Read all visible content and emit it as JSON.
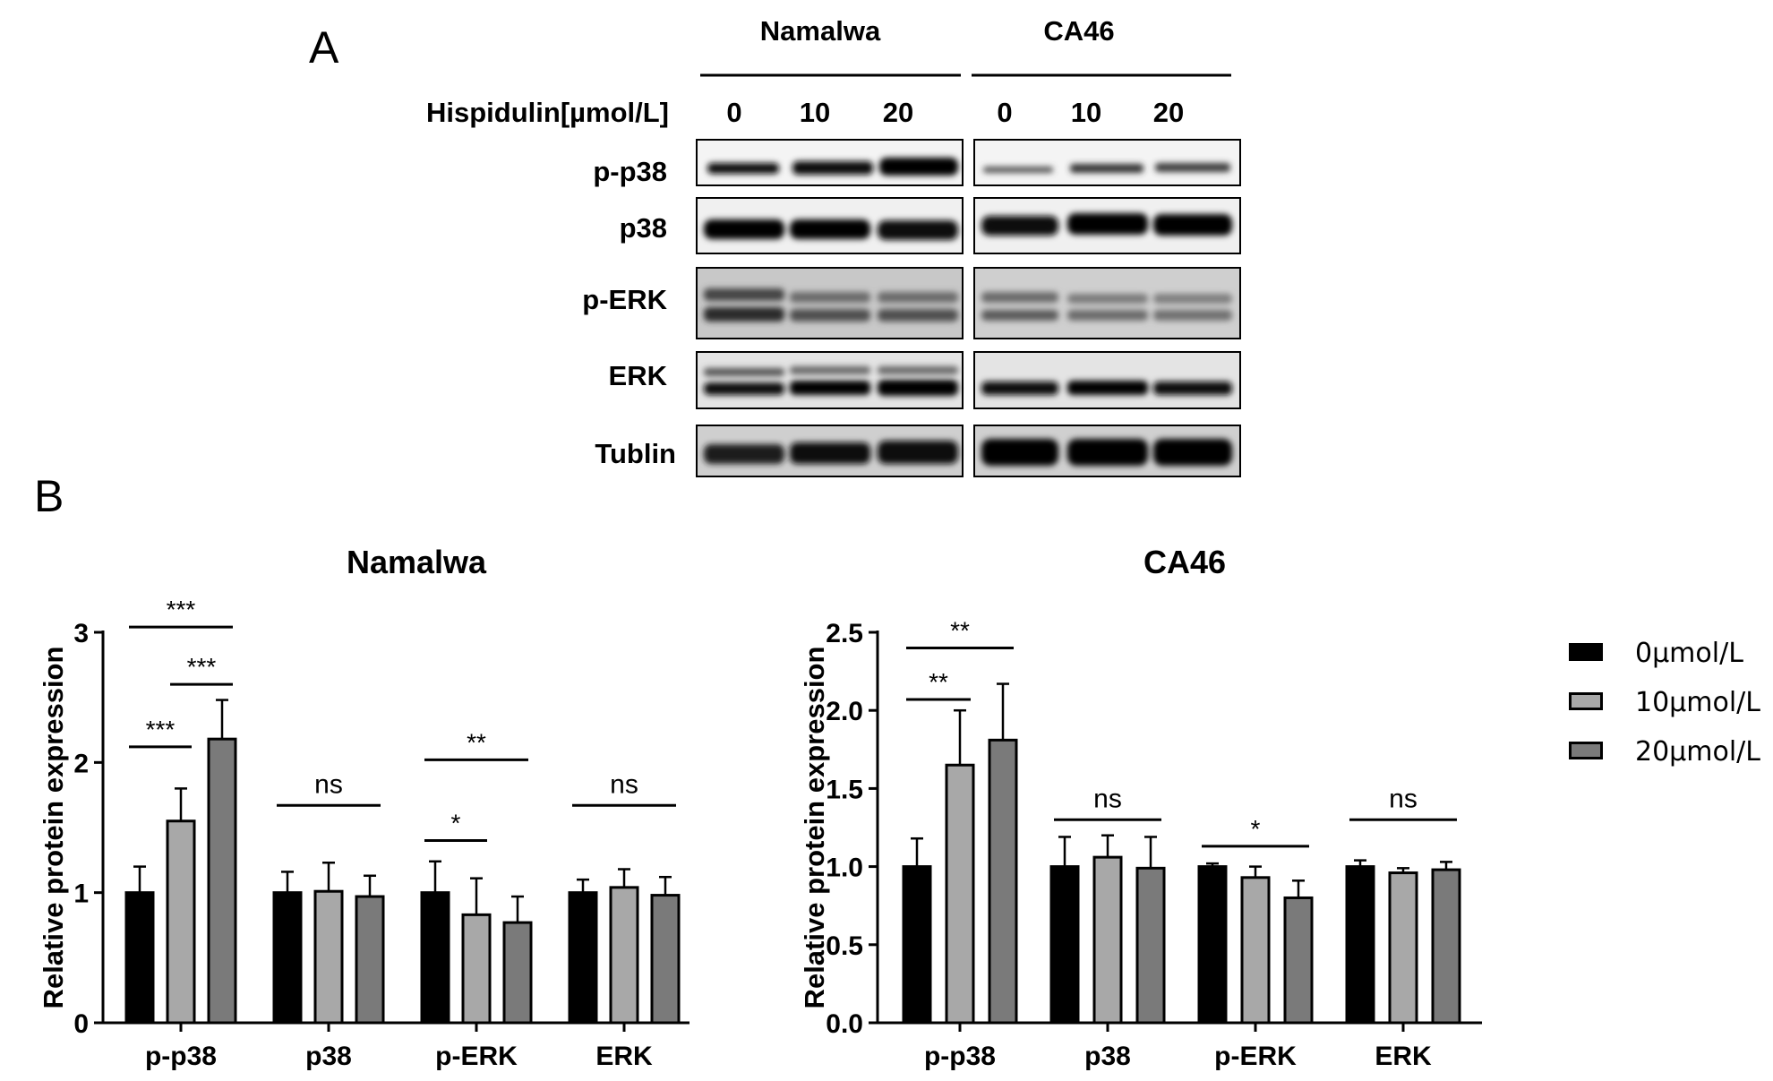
{
  "panels": {
    "a": "A",
    "b": "B"
  },
  "blot": {
    "cell_lines": [
      "Namalwa",
      "CA46"
    ],
    "treatment_label": "Hispidulin[µmol/L]",
    "doses": [
      "0",
      "10",
      "20"
    ],
    "rows": [
      "p-p38",
      "p38",
      "p-ERK",
      "ERK",
      "Tublin"
    ]
  },
  "legend": [
    {
      "label": "0µmol/L",
      "color": "#000000"
    },
    {
      "label": "10µmol/L",
      "color": "#a8a8a8"
    },
    {
      "label": "20µmol/L",
      "color": "#7a7a7a"
    }
  ],
  "chart_data": [
    {
      "type": "bar",
      "title": "Namalwa",
      "ylabel": "Relative protein expression",
      "xlabel": "",
      "categories": [
        "p-p38",
        "p38",
        "p-ERK",
        "ERK"
      ],
      "ylim": [
        0,
        3
      ],
      "yticks": [
        "0",
        "1",
        "2",
        "3"
      ],
      "series": [
        {
          "name": "0µmol/L",
          "color": "#000000",
          "values": [
            1.0,
            1.0,
            1.0,
            1.0
          ],
          "errors": [
            0.2,
            0.16,
            0.24,
            0.1
          ]
        },
        {
          "name": "10µmol/L",
          "color": "#a8a8a8",
          "values": [
            1.55,
            1.01,
            0.83,
            1.04
          ],
          "errors": [
            0.25,
            0.22,
            0.28,
            0.14
          ]
        },
        {
          "name": "20µmol/L",
          "color": "#7a7a7a",
          "values": [
            2.18,
            0.97,
            0.77,
            0.98
          ],
          "errors": [
            0.3,
            0.16,
            0.2,
            0.14
          ]
        }
      ],
      "annotations": [
        {
          "category": 0,
          "from": 0,
          "to": 2,
          "y": 3.04,
          "text": "***"
        },
        {
          "category": 0,
          "from": 1,
          "to": 2,
          "y": 2.6,
          "text": "***"
        },
        {
          "category": 0,
          "from": 0,
          "to": 1,
          "y": 2.12,
          "text": "***"
        },
        {
          "category": 1,
          "from": 0,
          "to": 2,
          "y": 1.67,
          "text": "ns"
        },
        {
          "category": 2,
          "from": 0,
          "to": 2,
          "y": 2.02,
          "text": "**"
        },
        {
          "category": 2,
          "from": 0,
          "to": 1,
          "y": 1.4,
          "text": "*"
        },
        {
          "category": 3,
          "from": 0,
          "to": 2,
          "y": 1.67,
          "text": "ns"
        }
      ]
    },
    {
      "type": "bar",
      "title": "CA46",
      "ylabel": "Relative protein expression",
      "xlabel": "",
      "categories": [
        "p-p38",
        "p38",
        "p-ERK",
        "ERK"
      ],
      "ylim": [
        0,
        2.5
      ],
      "yticks": [
        "0.0",
        "0.5",
        "1.0",
        "1.5",
        "2.0",
        "2.5"
      ],
      "series": [
        {
          "name": "0µmol/L",
          "color": "#000000",
          "values": [
            1.0,
            1.0,
            1.0,
            1.0
          ],
          "errors": [
            0.18,
            0.19,
            0.02,
            0.04
          ]
        },
        {
          "name": "10µmol/L",
          "color": "#a8a8a8",
          "values": [
            1.65,
            1.06,
            0.93,
            0.96
          ],
          "errors": [
            0.35,
            0.14,
            0.07,
            0.03
          ]
        },
        {
          "name": "20µmol/L",
          "color": "#7a7a7a",
          "values": [
            1.81,
            0.99,
            0.8,
            0.98
          ],
          "errors": [
            0.36,
            0.2,
            0.11,
            0.05
          ]
        }
      ],
      "annotations": [
        {
          "category": 0,
          "from": 0,
          "to": 2,
          "y": 2.4,
          "text": "**"
        },
        {
          "category": 0,
          "from": 0,
          "to": 1,
          "y": 2.07,
          "text": "**"
        },
        {
          "category": 1,
          "from": 0,
          "to": 2,
          "y": 1.3,
          "text": "ns"
        },
        {
          "category": 2,
          "from": 0,
          "to": 2,
          "y": 1.13,
          "text": "*"
        },
        {
          "category": 3,
          "from": 0,
          "to": 2,
          "y": 1.3,
          "text": "ns"
        }
      ]
    }
  ]
}
